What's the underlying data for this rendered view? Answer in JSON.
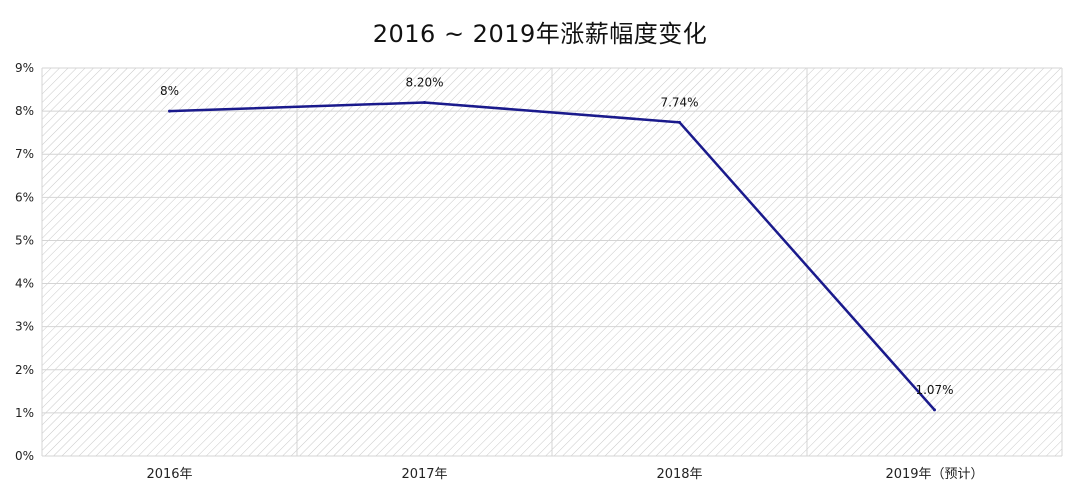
{
  "chart_data": {
    "type": "line",
    "title": "2016 ~ 2019年涨薪幅度变化",
    "categories": [
      "2016年",
      "2017年",
      "2018年",
      "2019年（预计）"
    ],
    "values": [
      8.0,
      8.2,
      7.74,
      1.07
    ],
    "data_labels": [
      "8%",
      "8.20%",
      "7.74%",
      "1.07%"
    ],
    "yticks": [
      "0%",
      "1%",
      "2%",
      "3%",
      "4%",
      "5%",
      "6%",
      "7%",
      "8%",
      "9%"
    ],
    "ylim": [
      0,
      9
    ],
    "grid": true,
    "legend": "none",
    "line_color": "#1a1a8c",
    "grid_color": "#d4d4d4",
    "hatch_color": "#c9c9c9"
  }
}
